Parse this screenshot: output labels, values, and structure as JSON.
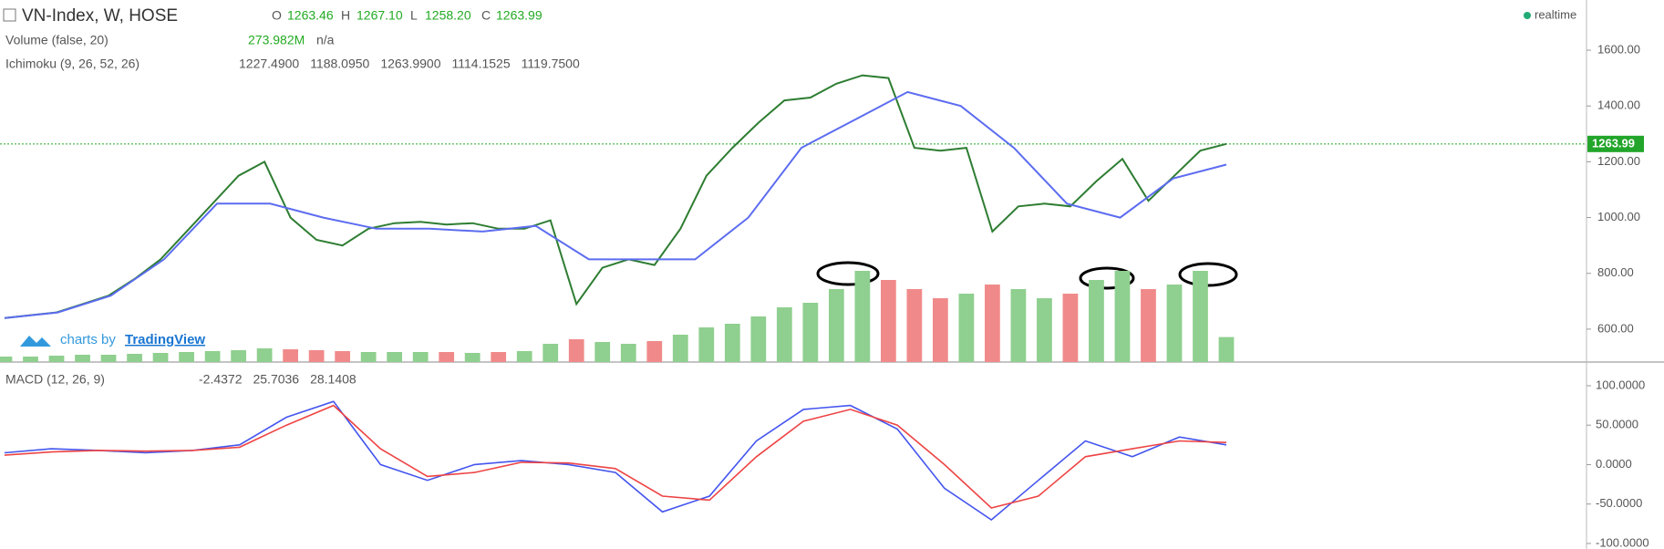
{
  "header": {
    "title": "VN-Index, W, HOSE",
    "o_label": "O",
    "open": "1263.46",
    "h_label": "H",
    "high": "1267.10",
    "l_label": "L",
    "low": "1258.20",
    "c_label": "C",
    "close": "1263.99",
    "realtime": "realtime"
  },
  "volume_legend": {
    "name": "Volume (false, 20)",
    "value": "273.982M",
    "extra": "n/a"
  },
  "ichimoku_legend": {
    "name": "Ichimoku (9, 26, 52, 26)",
    "values": [
      {
        "text": "1227.4900",
        "color": "#f44"
      },
      {
        "text": "1188.0950",
        "color": "#66f"
      },
      {
        "text": "1263.9900",
        "color": "#4a4"
      },
      {
        "text": "1114.1525",
        "color": "#ee0"
      },
      {
        "text": "1119.7500",
        "color": "#6e2"
      }
    ]
  },
  "macd_legend": {
    "name": "MACD (12, 26, 9)",
    "values": [
      {
        "text": "-2.4372",
        "color": "#e33"
      },
      {
        "text": "25.7036",
        "color": "#33e"
      },
      {
        "text": "28.1408",
        "color": "#e33"
      }
    ]
  },
  "branding": {
    "prefix": "charts by",
    "link": "TradingView"
  },
  "chart_data": {
    "type": "line",
    "ylim": [
      482,
      1780
    ],
    "yticks": [
      {
        "value": 600,
        "label": "600.00"
      },
      {
        "value": 800,
        "label": "800.00"
      },
      {
        "value": 1000,
        "label": "1000.00"
      },
      {
        "value": 1200,
        "label": "1200.00"
      },
      {
        "value": 1400,
        "label": "1400.00"
      },
      {
        "value": 1600,
        "label": "1600.00"
      }
    ],
    "last_price": {
      "value": 1263.99,
      "label": "1263.99"
    },
    "series": [
      {
        "name": "VN-Index",
        "color": "#2e7d32",
        "values": [
          640,
          650,
          660,
          690,
          720,
          780,
          850,
          950,
          1050,
          1150,
          1200,
          1000,
          920,
          900,
          960,
          980,
          985,
          975,
          980,
          960,
          960,
          990,
          690,
          820,
          850,
          830,
          960,
          1150,
          1250,
          1340,
          1420,
          1430,
          1480,
          1510,
          1500,
          1250,
          1240,
          1250,
          950,
          1040,
          1050,
          1040,
          1130,
          1210,
          1060,
          1150,
          1240,
          1263.99
        ]
      },
      {
        "name": "Kijun",
        "color": "#5c6cf0",
        "values": [
          640,
          660,
          720,
          850,
          1050,
          1050,
          1000,
          960,
          960,
          950,
          970,
          850,
          850,
          850,
          1000,
          1250,
          1350,
          1450,
          1400,
          1250,
          1050,
          1000,
          1140,
          1190
        ]
      }
    ],
    "volume": {
      "ylim": [
        0,
        1200
      ],
      "up_color": "#8fcf8f",
      "down_color": "#f08a8a",
      "values": [
        60,
        60,
        70,
        80,
        80,
        90,
        100,
        110,
        120,
        130,
        150,
        140,
        130,
        120,
        110,
        110,
        110,
        110,
        100,
        110,
        120,
        200,
        250,
        220,
        200,
        230,
        300,
        380,
        420,
        500,
        600,
        650,
        800,
        1000,
        900,
        800,
        700,
        750,
        850,
        800,
        700,
        750,
        900,
        1000,
        800,
        850,
        1000,
        273.982
      ]
    },
    "macd": {
      "ylim": [
        -107,
        130
      ],
      "yticks": [
        {
          "value": 100,
          "label": "100.0000"
        },
        {
          "value": 50,
          "label": "50.0000"
        },
        {
          "value": 0,
          "label": "0.0000"
        },
        {
          "value": -50,
          "label": "-50.0000"
        },
        {
          "value": -100,
          "label": "-100.0000"
        }
      ],
      "series": [
        {
          "name": "MACD",
          "color": "#4455ee",
          "values": [
            15,
            20,
            18,
            15,
            18,
            25,
            60,
            80,
            0,
            -20,
            0,
            5,
            0,
            -10,
            -60,
            -40,
            30,
            70,
            75,
            45,
            -30,
            -70,
            -20,
            30,
            10,
            35,
            25
          ]
        },
        {
          "name": "Signal",
          "color": "#ee4444",
          "values": [
            12,
            16,
            18,
            17,
            18,
            22,
            50,
            75,
            20,
            -15,
            -10,
            3,
            2,
            -5,
            -40,
            -45,
            10,
            55,
            70,
            50,
            0,
            -55,
            -40,
            10,
            20,
            30,
            28
          ]
        }
      ]
    }
  }
}
